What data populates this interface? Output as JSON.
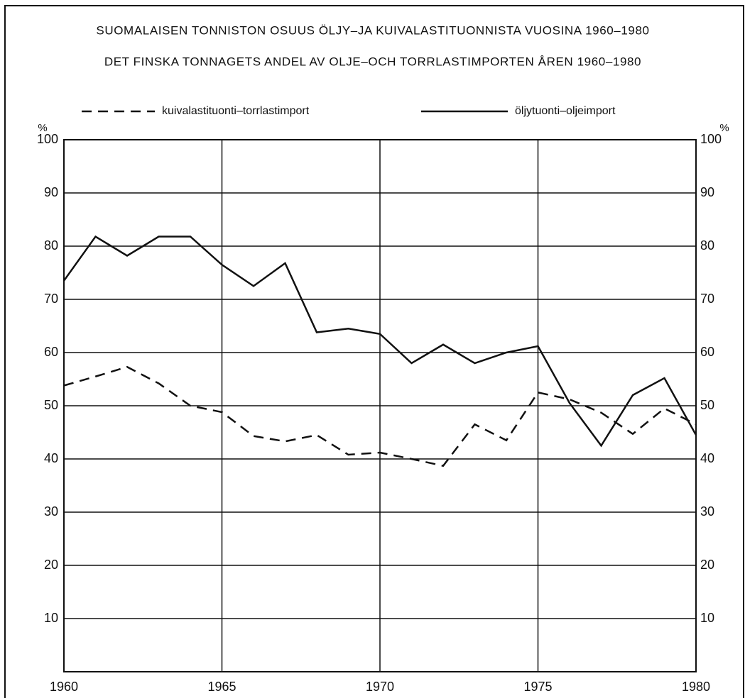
{
  "chart_data": {
    "type": "line",
    "title": "SUOMALAISEN TONNISTON OSUUS ÖLJY–JA KUIVALASTITUONNISTA VUOSINA 1960–1980",
    "subtitle": "DET FINSKA TONNAGETS ANDEL AV OLJE–OCH TORRLASTIMPORTEN ÅREN 1960–1980",
    "ylabel": "%",
    "y2label": "%",
    "x": [
      1960,
      1961,
      1962,
      1963,
      1964,
      1965,
      1966,
      1967,
      1968,
      1969,
      1970,
      1971,
      1972,
      1973,
      1974,
      1975,
      1976,
      1977,
      1978,
      1979,
      1980
    ],
    "xlim": [
      1960,
      1980
    ],
    "xticks": [
      1960,
      1965,
      1970,
      1975,
      1980
    ],
    "ylim": [
      0,
      100
    ],
    "yticks": [
      10,
      20,
      30,
      40,
      50,
      60,
      70,
      80,
      90,
      100
    ],
    "y2lim": [
      0,
      100
    ],
    "y2ticks": [
      10,
      20,
      30,
      40,
      50,
      60,
      70,
      80,
      90,
      100
    ],
    "grid": true,
    "series": [
      {
        "name": "kuivalastituonti–torrlastimport",
        "color": "#111111",
        "style": "dashed",
        "values": [
          53.8,
          55.5,
          57.3,
          54.2,
          50,
          48.8,
          44.3,
          43.3,
          44.5,
          40.8,
          41.2,
          40,
          38.7,
          46.5,
          43.5,
          52.5,
          51.2,
          48.7,
          44.7,
          49.5,
          46.5
        ]
      },
      {
        "name": "öljytuonti–oljeimport",
        "color": "#111111",
        "style": "solid",
        "values": [
          73.5,
          81.8,
          78.2,
          81.8,
          81.8,
          76.5,
          72.5,
          76.8,
          63.8,
          64.5,
          63.5,
          58,
          61.5,
          58,
          60,
          61.2,
          50.5,
          42.5,
          52,
          55.2,
          44.5
        ]
      }
    ]
  }
}
